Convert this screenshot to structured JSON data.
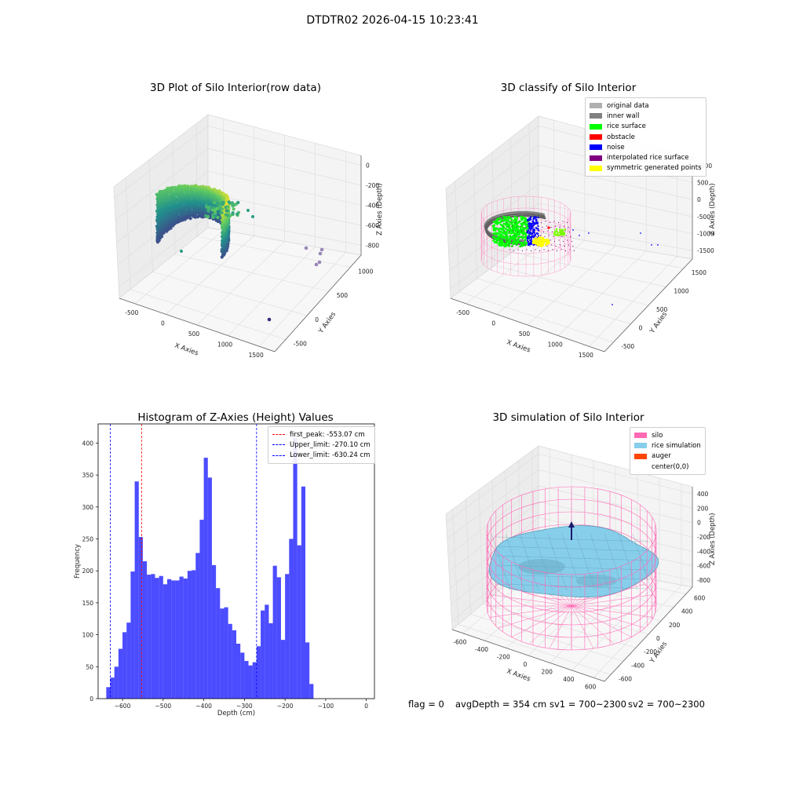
{
  "figure": {
    "suptitle": "DTDTR02 2026-04-15 10:23:41",
    "footer": {
      "flag": "flag = 0",
      "avg_depth": "avgDepth = 354 cm",
      "sv1": "sv1 = 700~2300",
      "sv2": "sv2 = 700~2300"
    }
  },
  "chart_data": [
    {
      "type": "scatter",
      "panel": "3d-raw",
      "title": "3D Plot of Silo Interior(row data)",
      "xlabel": "X Axies",
      "ylabel": "Y Axies",
      "zlabel": "Z Axies (Depth)",
      "x_ticks": [
        "-500",
        "0",
        "500",
        "1000",
        "1500"
      ],
      "y_ticks": [
        "-500",
        "0",
        "500",
        "1000"
      ],
      "z_ticks": [
        "0",
        "-200",
        "-400",
        "-600",
        "-800"
      ],
      "colormap": "viridis",
      "outlier_points": [
        {
          "x": 1300,
          "y": 800,
          "z": -680
        },
        {
          "x": 1400,
          "y": 700,
          "z": -720
        },
        {
          "x": 1380,
          "y": 760,
          "z": -800
        },
        {
          "x": 1420,
          "y": 820,
          "z": -760
        },
        {
          "x": 1500,
          "y": 200,
          "z": -900
        }
      ]
    },
    {
      "type": "scatter",
      "panel": "3d-classify",
      "title": "3D classify of Silo Interior",
      "xlabel": "X Axies",
      "ylabel": "Y Axies",
      "zlabel": "Z Axies (Depth)",
      "x_ticks": [
        "-500",
        "0",
        "500",
        "1000",
        "1500"
      ],
      "y_ticks": [
        "-500",
        "0",
        "500",
        "1000",
        "1500"
      ],
      "z_ticks": [
        "1000",
        "500",
        "0",
        "-500",
        "-1000",
        "-1500"
      ],
      "legend": [
        {
          "label": "original data",
          "color": "#b0b0b0"
        },
        {
          "label": "inner wall",
          "color": "#808080"
        },
        {
          "label": "rice surface",
          "color": "#00ff00"
        },
        {
          "label": "obstacle",
          "color": "#ff0000"
        },
        {
          "label": "noise",
          "color": "#0000ff"
        },
        {
          "label": "interpolated rice surface",
          "color": "#800080"
        },
        {
          "label": "symmetric generated points",
          "color": "#ffff00"
        }
      ],
      "legend_position": "top-right"
    },
    {
      "type": "bar",
      "panel": "histogram",
      "title": "Histogram of Z-Axies (Height) Values",
      "xlabel": "Depth (cm)",
      "ylabel": "Frequency",
      "xlim": [
        -660,
        20
      ],
      "ylim": [
        0,
        430
      ],
      "x_ticks": [
        -600,
        -500,
        -400,
        -300,
        -200,
        -100,
        0
      ],
      "y_ticks": [
        0,
        50,
        100,
        150,
        200,
        250,
        300,
        350,
        400
      ],
      "bar_color": "#0000ff",
      "bin_start": -640,
      "bin_width": 10,
      "values": [
        18,
        33,
        50,
        78,
        104,
        119,
        199,
        340,
        253,
        215,
        194,
        195,
        189,
        192,
        179,
        187,
        185,
        185,
        191,
        188,
        200,
        201,
        228,
        280,
        377,
        346,
        209,
        173,
        141,
        143,
        117,
        107,
        86,
        72,
        59,
        52,
        57,
        82,
        138,
        147,
        118,
        208,
        190,
        92,
        195,
        250,
        408,
        240,
        332,
        88,
        23
      ],
      "vlines": [
        {
          "label": "first_peak: -553.07 cm",
          "x": -553.07,
          "color": "#ff0000"
        },
        {
          "label": "Upper_limit: -270.10 cm",
          "x": -270.1,
          "color": "#0000ff"
        },
        {
          "label": "Lower_limit: -630.24 cm",
          "x": -630.24,
          "color": "#0000ff"
        }
      ],
      "legend_position": "top-right"
    },
    {
      "type": "surface",
      "panel": "3d-simulation",
      "title": "3D simulation of Silo Interior",
      "xlabel": "X Axies",
      "ylabel": "Y Axies",
      "zlabel": "Z Axies (Depth)",
      "x_ticks": [
        "-600",
        "-400",
        "-200",
        "0",
        "200",
        "400",
        "600"
      ],
      "y_ticks": [
        "-600",
        "-400",
        "-200",
        "0",
        "200",
        "400",
        "600"
      ],
      "z_ticks": [
        "400",
        "200",
        "0",
        "-200",
        "-400",
        "-600",
        "-800"
      ],
      "legend": [
        {
          "label": "silo",
          "color": "#ff69b4"
        },
        {
          "label": "rice simulation",
          "color": "#87ceeb"
        },
        {
          "label": "auger",
          "color": "#ff4500"
        },
        {
          "label": "center(0,0)",
          "color": "#ffffff"
        }
      ],
      "legend_position": "top-right"
    }
  ]
}
